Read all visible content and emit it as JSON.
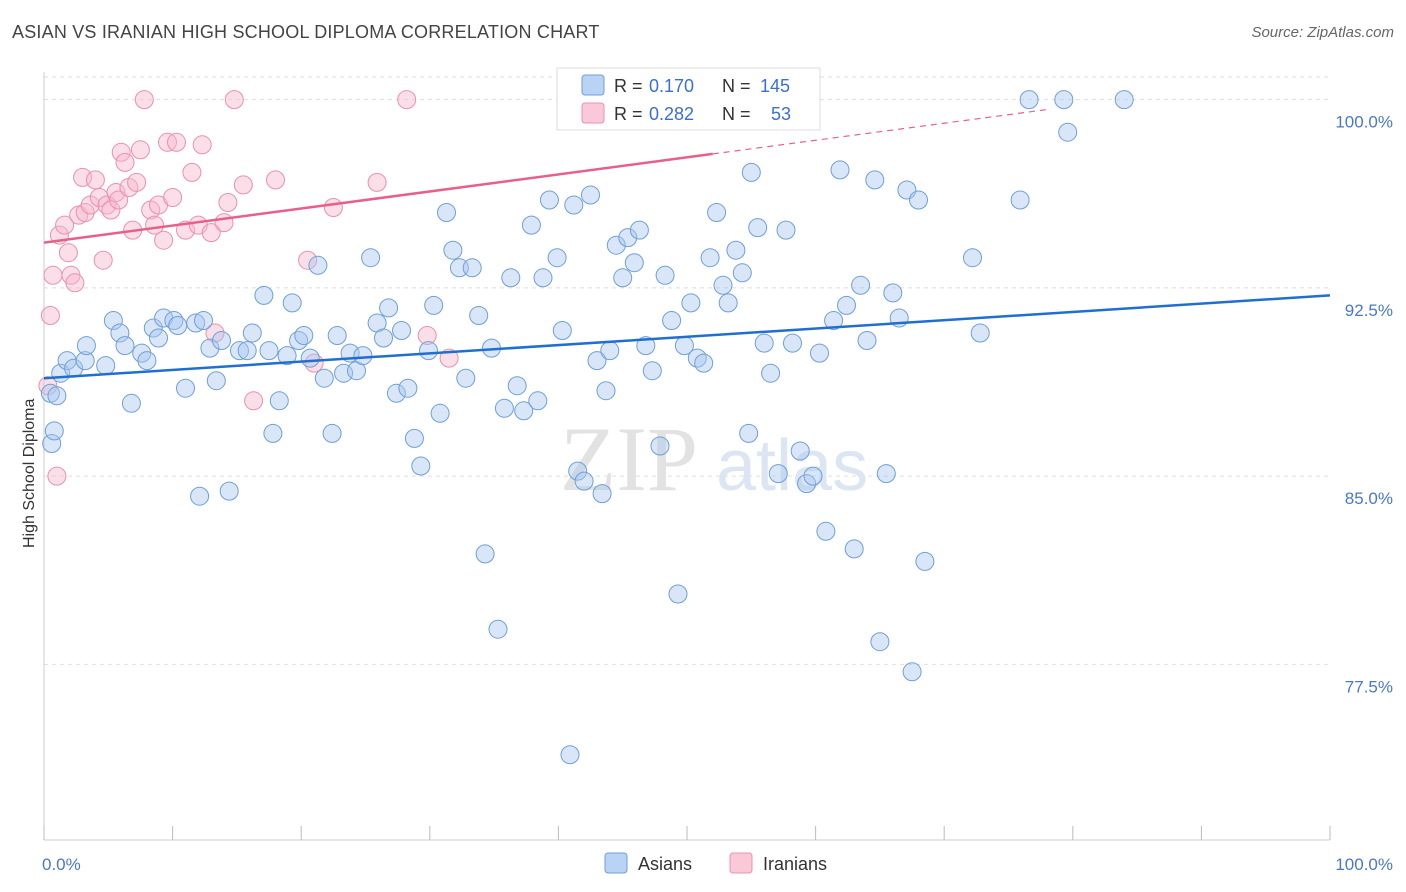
{
  "title": "ASIAN VS IRANIAN HIGH SCHOOL DIPLOMA CORRELATION CHART",
  "source": "Source: ZipAtlas.com",
  "watermark": {
    "zip": "ZIP",
    "atlas": "atlas"
  },
  "colors": {
    "asian_fill": "#a8c8f0",
    "asian_stroke": "#6f9fd8",
    "asian_line": "#1f6fd0",
    "iranian_fill": "#f6b8cc",
    "iranian_stroke": "#ec8fae",
    "iranian_line": "#e8608a",
    "grid": "#dddddd",
    "tick_label": "#4a78c8"
  },
  "legend": {
    "asian": {
      "r_label": "R =",
      "r_value": "0.170",
      "n_label": "N =",
      "n_value": "145"
    },
    "iranian": {
      "r_label": "R =",
      "r_value": "0.282",
      "n_label": "N =",
      "n_value": "53"
    }
  },
  "chart_data": {
    "type": "scatter",
    "title": "ASIAN VS IRANIAN HIGH SCHOOL DIPLOMA CORRELATION CHART",
    "xlabel": "",
    "ylabel": "High School Diploma",
    "xlim": [
      0,
      100
    ],
    "ylim": [
      70.5,
      101.1
    ],
    "x_tick_labels": [
      "0.0%",
      "100.0%"
    ],
    "y_ticks": [
      77.5,
      85.0,
      92.5,
      100.0
    ],
    "y_tick_labels": [
      "77.5%",
      "85.0%",
      "92.5%",
      "100.0%"
    ],
    "grid": true,
    "legend_position": "top-center",
    "series": [
      {
        "name": "Asians",
        "trend": {
          "x": [
            0,
            100
          ],
          "y": [
            88.9,
            92.2
          ]
        },
        "points": [
          [
            0.5,
            88.3
          ],
          [
            0.6,
            86.3
          ],
          [
            0.8,
            86.8
          ],
          [
            1.0,
            88.2
          ],
          [
            1.3,
            89.1
          ],
          [
            1.8,
            89.6
          ],
          [
            2.3,
            89.3
          ],
          [
            3.2,
            89.6
          ],
          [
            3.3,
            90.2
          ],
          [
            4.8,
            89.4
          ],
          [
            5.4,
            91.2
          ],
          [
            5.9,
            90.7
          ],
          [
            6.3,
            90.2
          ],
          [
            6.8,
            87.9
          ],
          [
            7.6,
            89.9
          ],
          [
            8.0,
            89.6
          ],
          [
            8.5,
            90.9
          ],
          [
            8.9,
            90.5
          ],
          [
            9.3,
            91.3
          ],
          [
            10.1,
            91.2
          ],
          [
            10.4,
            91.0
          ],
          [
            11.0,
            88.5
          ],
          [
            11.8,
            91.1
          ],
          [
            12.1,
            84.2
          ],
          [
            12.4,
            91.2
          ],
          [
            12.9,
            90.1
          ],
          [
            13.4,
            88.8
          ],
          [
            13.8,
            90.4
          ],
          [
            14.4,
            84.4
          ],
          [
            15.2,
            90.0
          ],
          [
            15.8,
            90.0
          ],
          [
            16.2,
            90.7
          ],
          [
            17.1,
            92.2
          ],
          [
            17.5,
            90.0
          ],
          [
            17.8,
            86.7
          ],
          [
            18.3,
            88.0
          ],
          [
            18.9,
            89.8
          ],
          [
            19.3,
            91.9
          ],
          [
            19.8,
            90.4
          ],
          [
            20.2,
            90.6
          ],
          [
            20.7,
            89.7
          ],
          [
            21.3,
            93.4
          ],
          [
            21.8,
            88.9
          ],
          [
            22.4,
            86.7
          ],
          [
            22.8,
            90.6
          ],
          [
            23.3,
            89.1
          ],
          [
            23.8,
            89.9
          ],
          [
            24.3,
            89.2
          ],
          [
            24.8,
            89.8
          ],
          [
            25.4,
            93.7
          ],
          [
            25.9,
            91.1
          ],
          [
            26.4,
            90.5
          ],
          [
            26.8,
            91.7
          ],
          [
            27.4,
            88.3
          ],
          [
            27.8,
            90.8
          ],
          [
            28.3,
            88.5
          ],
          [
            28.8,
            86.5
          ],
          [
            29.3,
            85.4
          ],
          [
            29.9,
            90.0
          ],
          [
            30.3,
            91.8
          ],
          [
            30.8,
            87.5
          ],
          [
            31.3,
            95.5
          ],
          [
            31.8,
            94.0
          ],
          [
            32.3,
            93.3
          ],
          [
            32.8,
            88.9
          ],
          [
            33.3,
            93.3
          ],
          [
            33.8,
            91.4
          ],
          [
            34.3,
            81.9
          ],
          [
            34.8,
            90.1
          ],
          [
            35.3,
            78.9
          ],
          [
            35.8,
            87.7
          ],
          [
            36.3,
            92.9
          ],
          [
            36.8,
            88.6
          ],
          [
            37.3,
            87.6
          ],
          [
            37.9,
            95.0
          ],
          [
            38.4,
            88.0
          ],
          [
            38.8,
            92.9
          ],
          [
            39.3,
            96.0
          ],
          [
            39.9,
            93.7
          ],
          [
            40.3,
            90.8
          ],
          [
            40.9,
            73.9
          ],
          [
            41.2,
            95.8
          ],
          [
            41.5,
            85.2
          ],
          [
            42.0,
            84.8
          ],
          [
            42.5,
            96.2
          ],
          [
            43.0,
            89.6
          ],
          [
            43.4,
            84.3
          ],
          [
            43.7,
            88.4
          ],
          [
            44.0,
            90.0
          ],
          [
            44.5,
            94.2
          ],
          [
            45.0,
            92.9
          ],
          [
            45.4,
            94.5
          ],
          [
            45.9,
            93.5
          ],
          [
            46.3,
            94.8
          ],
          [
            46.8,
            90.2
          ],
          [
            47.3,
            89.2
          ],
          [
            47.9,
            86.2
          ],
          [
            48.3,
            93.0
          ],
          [
            48.8,
            91.2
          ],
          [
            49.3,
            80.3
          ],
          [
            49.8,
            90.2
          ],
          [
            50.3,
            91.9
          ],
          [
            50.8,
            89.7
          ],
          [
            51.3,
            89.5
          ],
          [
            51.8,
            93.7
          ],
          [
            52.3,
            95.5
          ],
          [
            52.8,
            92.6
          ],
          [
            53.2,
            91.9
          ],
          [
            53.8,
            94.0
          ],
          [
            54.3,
            93.1
          ],
          [
            54.8,
            86.7
          ],
          [
            55.0,
            97.1
          ],
          [
            55.5,
            94.9
          ],
          [
            56.0,
            90.3
          ],
          [
            56.5,
            89.1
          ],
          [
            57.1,
            85.1
          ],
          [
            57.7,
            94.8
          ],
          [
            58.2,
            90.3
          ],
          [
            58.8,
            86.0
          ],
          [
            59.3,
            84.7
          ],
          [
            59.8,
            85.0
          ],
          [
            60.3,
            89.9
          ],
          [
            60.8,
            82.8
          ],
          [
            61.4,
            91.2
          ],
          [
            61.9,
            97.2
          ],
          [
            62.4,
            91.8
          ],
          [
            63.0,
            82.1
          ],
          [
            63.5,
            92.6
          ],
          [
            64.0,
            90.4
          ],
          [
            64.6,
            96.8
          ],
          [
            65.0,
            78.4
          ],
          [
            65.5,
            85.1
          ],
          [
            66.0,
            92.3
          ],
          [
            66.5,
            91.3
          ],
          [
            67.1,
            96.4
          ],
          [
            67.5,
            77.2
          ],
          [
            68.0,
            96.0
          ],
          [
            68.5,
            81.6
          ],
          [
            72.2,
            93.7
          ],
          [
            72.8,
            90.7
          ],
          [
            75.9,
            96.0
          ],
          [
            76.6,
            100.0
          ],
          [
            79.3,
            100.0
          ],
          [
            79.6,
            98.7
          ],
          [
            84.0,
            100.0
          ]
        ]
      },
      {
        "name": "Iranians",
        "trend": {
          "x": [
            0,
            100
          ],
          "y": [
            94.3,
            101.1
          ]
        },
        "trend_solid_until_x": 52,
        "points": [
          [
            0.3,
            88.6
          ],
          [
            0.5,
            91.4
          ],
          [
            0.7,
            93.0
          ],
          [
            1.0,
            85.0
          ],
          [
            1.2,
            94.6
          ],
          [
            1.6,
            95.0
          ],
          [
            1.9,
            93.9
          ],
          [
            2.1,
            93.0
          ],
          [
            2.4,
            92.7
          ],
          [
            2.7,
            95.4
          ],
          [
            3.0,
            96.9
          ],
          [
            3.2,
            95.5
          ],
          [
            3.6,
            95.8
          ],
          [
            4.0,
            96.8
          ],
          [
            4.3,
            96.1
          ],
          [
            4.6,
            93.6
          ],
          [
            4.9,
            95.8
          ],
          [
            5.2,
            95.6
          ],
          [
            5.6,
            96.3
          ],
          [
            5.8,
            96.0
          ],
          [
            6.0,
            97.9
          ],
          [
            6.3,
            97.5
          ],
          [
            6.6,
            96.5
          ],
          [
            6.9,
            94.8
          ],
          [
            7.2,
            96.7
          ],
          [
            7.5,
            98.0
          ],
          [
            7.8,
            100.0
          ],
          [
            8.3,
            95.6
          ],
          [
            8.6,
            95.0
          ],
          [
            8.9,
            95.8
          ],
          [
            9.3,
            94.4
          ],
          [
            9.6,
            98.3
          ],
          [
            10.0,
            96.1
          ],
          [
            10.3,
            98.3
          ],
          [
            11.0,
            94.8
          ],
          [
            11.5,
            97.1
          ],
          [
            12.0,
            95.0
          ],
          [
            12.3,
            98.2
          ],
          [
            13.0,
            94.7
          ],
          [
            13.3,
            90.7
          ],
          [
            14.0,
            95.1
          ],
          [
            14.3,
            95.9
          ],
          [
            14.8,
            100.0
          ],
          [
            15.5,
            96.6
          ],
          [
            16.3,
            88.0
          ],
          [
            18.0,
            96.8
          ],
          [
            20.5,
            93.6
          ],
          [
            21.0,
            89.5
          ],
          [
            22.5,
            95.7
          ],
          [
            25.9,
            96.7
          ],
          [
            28.2,
            100.0
          ],
          [
            29.8,
            90.6
          ],
          [
            31.5,
            89.7
          ]
        ]
      }
    ]
  },
  "bottom_legend": {
    "asian_label": "Asians",
    "iranian_label": "Iranians"
  }
}
